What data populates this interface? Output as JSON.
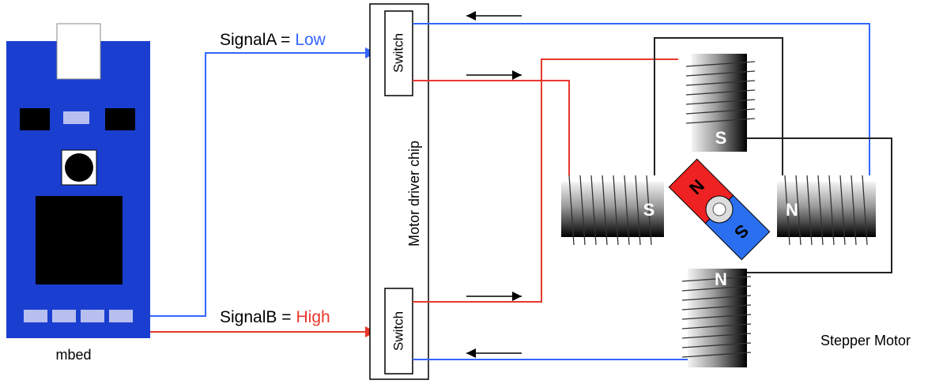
{
  "mbed": {
    "label": "mbed"
  },
  "signals": [
    {
      "prefix": "SignalA =",
      "state": "Low"
    },
    {
      "prefix": "SignalB =",
      "state": "High"
    }
  ],
  "chip": {
    "label": "Motor driver chip",
    "switches": [
      "Switch",
      "Switch"
    ]
  },
  "motor": {
    "label": "Stepper Motor",
    "poles": [
      "S",
      "S",
      "N",
      "N"
    ],
    "rotor": [
      "N",
      "S"
    ]
  }
}
